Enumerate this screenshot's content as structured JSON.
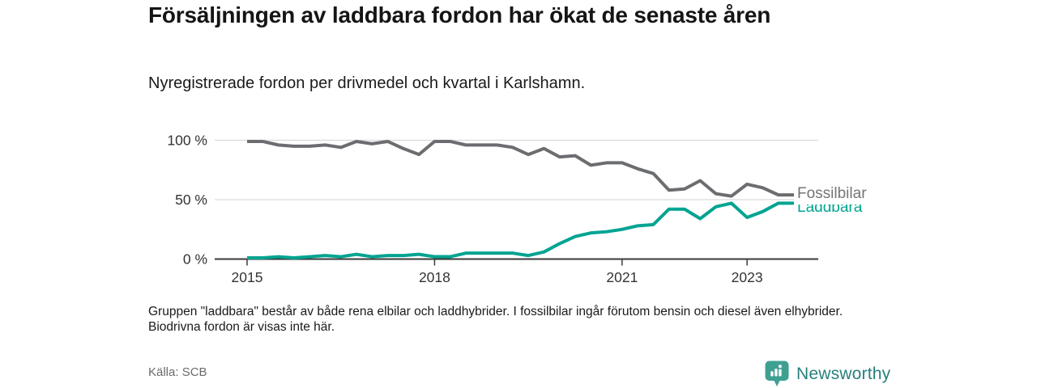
{
  "header": {
    "title": "Försäljningen av laddbara fordon har ökat de senaste åren",
    "subtitle": "Nyregistrerade fordon per drivmedel och kvartal i Karlshamn."
  },
  "chart_data": {
    "type": "line",
    "title": "Nyregistrerade fordon per drivmedel och kvartal i Karlshamn",
    "x_unit": "quarter",
    "x": [
      "2015 Q1",
      "2015 Q2",
      "2015 Q3",
      "2015 Q4",
      "2016 Q1",
      "2016 Q2",
      "2016 Q3",
      "2016 Q4",
      "2017 Q1",
      "2017 Q2",
      "2017 Q3",
      "2017 Q4",
      "2018 Q1",
      "2018 Q2",
      "2018 Q3",
      "2018 Q4",
      "2019 Q1",
      "2019 Q2",
      "2019 Q3",
      "2019 Q4",
      "2020 Q1",
      "2020 Q2",
      "2020 Q3",
      "2020 Q4",
      "2021 Q1",
      "2021 Q2",
      "2021 Q3",
      "2021 Q4",
      "2022 Q1",
      "2022 Q2",
      "2022 Q3",
      "2022 Q4",
      "2023 Q1",
      "2023 Q2",
      "2023 Q3",
      "2023 Q4"
    ],
    "x_tick_labels": [
      "2015",
      "2018",
      "2021",
      "2023"
    ],
    "y_tick_labels": [
      "100 %",
      "50 %",
      "0 %"
    ],
    "ylim": [
      0,
      100
    ],
    "y_unit": "%",
    "grid": "horizontal",
    "axis_color": "#3a3a3a",
    "grid_color": "#d9d9d9",
    "tick_label_color": "#333333",
    "legend_position": "right-of-line-ends",
    "series": [
      {
        "name": "Fossilbilar",
        "color": "#6b6d70",
        "label_color": "#747578",
        "values": [
          99,
          99,
          96,
          95,
          95,
          96,
          94,
          99,
          97,
          99,
          93,
          88,
          99,
          99,
          96,
          96,
          96,
          94,
          88,
          93,
          86,
          87,
          79,
          81,
          81,
          76,
          72,
          58,
          59,
          66,
          55,
          53,
          63,
          60,
          54,
          54
        ]
      },
      {
        "name": "Laddbara",
        "color": "#00a491",
        "label_color": "#00a491",
        "values": [
          1,
          1,
          2,
          1,
          2,
          3,
          2,
          4,
          2,
          3,
          3,
          4,
          2,
          2,
          5,
          5,
          5,
          5,
          3,
          6,
          13,
          19,
          22,
          23,
          25,
          28,
          29,
          42,
          42,
          34,
          44,
          47,
          35,
          40,
          47,
          47
        ]
      }
    ]
  },
  "footnote": "Gruppen \"laddbara\" består av både rena elbilar och laddhybrider. I fossilbilar ingår förutom bensin och diesel även elhybrider. Biodrivna fordon är visas inte här.",
  "source": "Källa: SCB",
  "logo": {
    "text": "Newsworthy",
    "icon": "newsworthy-bars-icon",
    "icon_color": "#3fa092",
    "text_color": "#27807c"
  }
}
